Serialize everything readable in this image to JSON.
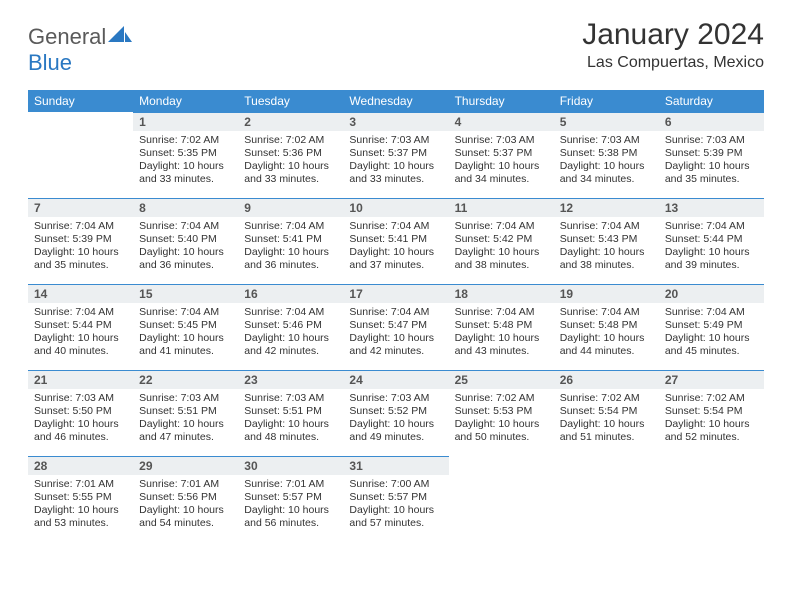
{
  "logo": {
    "name1": "General",
    "name2": "Blue"
  },
  "title": "January 2024",
  "subtitle": "Las Compuertas, Mexico",
  "colors": {
    "header_bg": "#3a8bd0",
    "header_text": "#ffffff",
    "daynum_bg": "#eceff1",
    "daynum_border": "#3a8bd0",
    "text": "#333333"
  },
  "dow": [
    "Sunday",
    "Monday",
    "Tuesday",
    "Wednesday",
    "Thursday",
    "Friday",
    "Saturday"
  ],
  "weeks": [
    [
      null,
      {
        "n": "1",
        "rise": "7:02 AM",
        "set": "5:35 PM",
        "day": "10 hours and 33 minutes."
      },
      {
        "n": "2",
        "rise": "7:02 AM",
        "set": "5:36 PM",
        "day": "10 hours and 33 minutes."
      },
      {
        "n": "3",
        "rise": "7:03 AM",
        "set": "5:37 PM",
        "day": "10 hours and 33 minutes."
      },
      {
        "n": "4",
        "rise": "7:03 AM",
        "set": "5:37 PM",
        "day": "10 hours and 34 minutes."
      },
      {
        "n": "5",
        "rise": "7:03 AM",
        "set": "5:38 PM",
        "day": "10 hours and 34 minutes."
      },
      {
        "n": "6",
        "rise": "7:03 AM",
        "set": "5:39 PM",
        "day": "10 hours and 35 minutes."
      }
    ],
    [
      {
        "n": "7",
        "rise": "7:04 AM",
        "set": "5:39 PM",
        "day": "10 hours and 35 minutes."
      },
      {
        "n": "8",
        "rise": "7:04 AM",
        "set": "5:40 PM",
        "day": "10 hours and 36 minutes."
      },
      {
        "n": "9",
        "rise": "7:04 AM",
        "set": "5:41 PM",
        "day": "10 hours and 36 minutes."
      },
      {
        "n": "10",
        "rise": "7:04 AM",
        "set": "5:41 PM",
        "day": "10 hours and 37 minutes."
      },
      {
        "n": "11",
        "rise": "7:04 AM",
        "set": "5:42 PM",
        "day": "10 hours and 38 minutes."
      },
      {
        "n": "12",
        "rise": "7:04 AM",
        "set": "5:43 PM",
        "day": "10 hours and 38 minutes."
      },
      {
        "n": "13",
        "rise": "7:04 AM",
        "set": "5:44 PM",
        "day": "10 hours and 39 minutes."
      }
    ],
    [
      {
        "n": "14",
        "rise": "7:04 AM",
        "set": "5:44 PM",
        "day": "10 hours and 40 minutes."
      },
      {
        "n": "15",
        "rise": "7:04 AM",
        "set": "5:45 PM",
        "day": "10 hours and 41 minutes."
      },
      {
        "n": "16",
        "rise": "7:04 AM",
        "set": "5:46 PM",
        "day": "10 hours and 42 minutes."
      },
      {
        "n": "17",
        "rise": "7:04 AM",
        "set": "5:47 PM",
        "day": "10 hours and 42 minutes."
      },
      {
        "n": "18",
        "rise": "7:04 AM",
        "set": "5:48 PM",
        "day": "10 hours and 43 minutes."
      },
      {
        "n": "19",
        "rise": "7:04 AM",
        "set": "5:48 PM",
        "day": "10 hours and 44 minutes."
      },
      {
        "n": "20",
        "rise": "7:04 AM",
        "set": "5:49 PM",
        "day": "10 hours and 45 minutes."
      }
    ],
    [
      {
        "n": "21",
        "rise": "7:03 AM",
        "set": "5:50 PM",
        "day": "10 hours and 46 minutes."
      },
      {
        "n": "22",
        "rise": "7:03 AM",
        "set": "5:51 PM",
        "day": "10 hours and 47 minutes."
      },
      {
        "n": "23",
        "rise": "7:03 AM",
        "set": "5:51 PM",
        "day": "10 hours and 48 minutes."
      },
      {
        "n": "24",
        "rise": "7:03 AM",
        "set": "5:52 PM",
        "day": "10 hours and 49 minutes."
      },
      {
        "n": "25",
        "rise": "7:02 AM",
        "set": "5:53 PM",
        "day": "10 hours and 50 minutes."
      },
      {
        "n": "26",
        "rise": "7:02 AM",
        "set": "5:54 PM",
        "day": "10 hours and 51 minutes."
      },
      {
        "n": "27",
        "rise": "7:02 AM",
        "set": "5:54 PM",
        "day": "10 hours and 52 minutes."
      }
    ],
    [
      {
        "n": "28",
        "rise": "7:01 AM",
        "set": "5:55 PM",
        "day": "10 hours and 53 minutes."
      },
      {
        "n": "29",
        "rise": "7:01 AM",
        "set": "5:56 PM",
        "day": "10 hours and 54 minutes."
      },
      {
        "n": "30",
        "rise": "7:01 AM",
        "set": "5:57 PM",
        "day": "10 hours and 56 minutes."
      },
      {
        "n": "31",
        "rise": "7:00 AM",
        "set": "5:57 PM",
        "day": "10 hours and 57 minutes."
      },
      null,
      null,
      null
    ]
  ],
  "labels": {
    "sunrise": "Sunrise: ",
    "sunset": "Sunset: ",
    "daylight": "Daylight: "
  }
}
